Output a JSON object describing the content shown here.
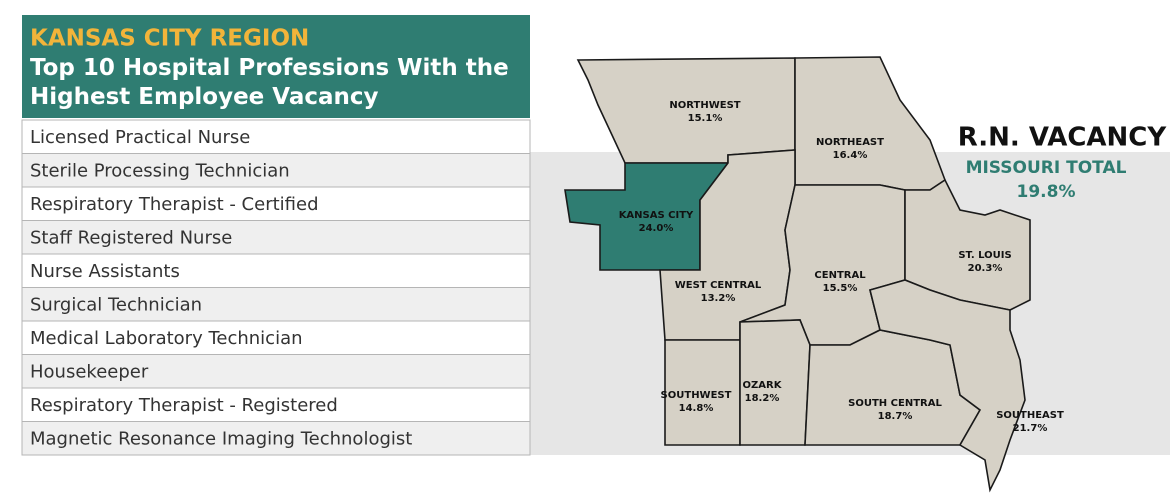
{
  "header": {
    "region": "KANSAS CITY REGION",
    "title": "Top 10 Hospital Professions With the Highest Employee Vacancy"
  },
  "table": {
    "rows": [
      "Licensed Practical Nurse",
      "Sterile Processing Technician",
      "Respiratory Therapist - Certified",
      "Staff Registered Nurse",
      "Nurse Assistants",
      "Surgical Technician",
      "Medical Laboratory Technician",
      "Housekeeper",
      "Respiratory Therapist - Registered",
      "Magnetic Resonance Imaging Technologist"
    ]
  },
  "map": {
    "title": "R.N. VACANCY",
    "total_label": "MISSOURI TOTAL",
    "total_value": "19.8%",
    "regions": [
      {
        "name": "NORTHWEST",
        "value": "15.1%"
      },
      {
        "name": "NORTHEAST",
        "value": "16.4%"
      },
      {
        "name": "KANSAS CITY",
        "value": "24.0%"
      },
      {
        "name": "WEST CENTRAL",
        "value": "13.2%"
      },
      {
        "name": "CENTRAL",
        "value": "15.5%"
      },
      {
        "name": "ST. LOUIS",
        "value": "20.3%"
      },
      {
        "name": "SOUTHWEST",
        "value": "14.8%"
      },
      {
        "name": "OZARK",
        "value": "18.2%"
      },
      {
        "name": "SOUTH CENTRAL",
        "value": "18.7%"
      },
      {
        "name": "SOUTHEAST",
        "value": "21.7%"
      }
    ]
  }
}
